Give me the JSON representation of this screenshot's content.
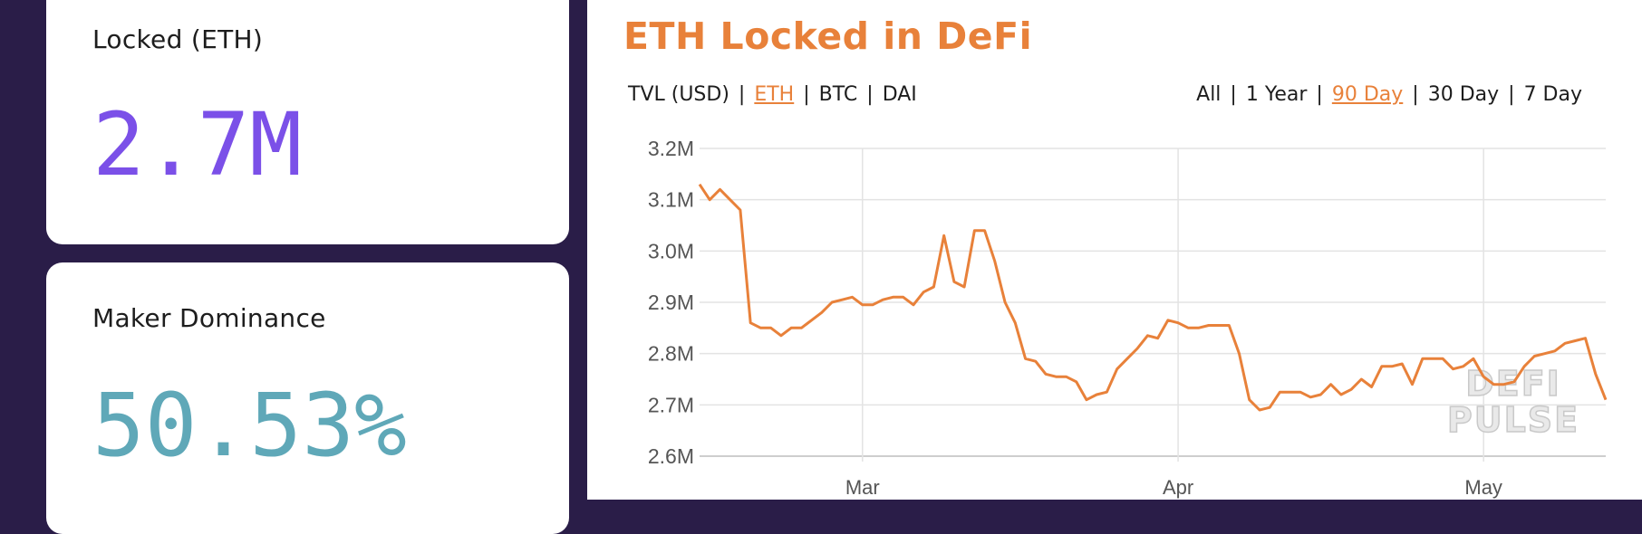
{
  "stats": {
    "locked": {
      "label": "Locked (ETH)",
      "value": "2.7M",
      "color": "#7b50e8"
    },
    "dominance": {
      "label": "Maker Dominance",
      "value": "50.53%",
      "color": "#5fa8b8"
    }
  },
  "colors": {
    "background": "#2a1d48",
    "accent": "#e8813a",
    "panel": "#ffffff"
  },
  "chart": {
    "title": "ETH Locked in DeFi",
    "metric_options": [
      {
        "label": "TVL (USD)",
        "active": false
      },
      {
        "label": "ETH",
        "active": true
      },
      {
        "label": "BTC",
        "active": false
      },
      {
        "label": "DAI",
        "active": false
      }
    ],
    "range_options": [
      {
        "label": "All",
        "active": false
      },
      {
        "label": "1 Year",
        "active": false
      },
      {
        "label": "90 Day",
        "active": true
      },
      {
        "label": "30 Day",
        "active": false
      },
      {
        "label": "7 Day",
        "active": false
      }
    ],
    "watermark": [
      "DEFI",
      "PULSE"
    ]
  },
  "chart_data": {
    "type": "line",
    "title": "ETH Locked in DeFi",
    "xlabel": "",
    "ylabel": "",
    "y_ticks": [
      "2.6M",
      "2.7M",
      "2.8M",
      "2.9M",
      "3.0M",
      "3.1M",
      "3.2M"
    ],
    "ylim": [
      2.6,
      3.2
    ],
    "y_unit": "M ETH",
    "x_tick_labels": [
      "Mar",
      "Apr",
      "May"
    ],
    "x_domain": [
      "2020-02-14",
      "2020-05-13"
    ],
    "x_ticks": [
      "2020-03-01",
      "2020-04-01",
      "2020-05-01"
    ],
    "grid": true,
    "legend": "none",
    "series": [
      {
        "color": "#e8813a",
        "points": [
          [
            "2020-02-14",
            3.13
          ],
          [
            "2020-02-15",
            3.1
          ],
          [
            "2020-02-16",
            3.12
          ],
          [
            "2020-02-17",
            3.1
          ],
          [
            "2020-02-18",
            3.08
          ],
          [
            "2020-02-19",
            2.86
          ],
          [
            "2020-02-20",
            2.85
          ],
          [
            "2020-02-21",
            2.85
          ],
          [
            "2020-02-22",
            2.835
          ],
          [
            "2020-02-23",
            2.85
          ],
          [
            "2020-02-24",
            2.85
          ],
          [
            "2020-02-25",
            2.865
          ],
          [
            "2020-02-26",
            2.88
          ],
          [
            "2020-02-27",
            2.9
          ],
          [
            "2020-02-28",
            2.905
          ],
          [
            "2020-02-29",
            2.91
          ],
          [
            "2020-03-01",
            2.895
          ],
          [
            "2020-03-02",
            2.895
          ],
          [
            "2020-03-03",
            2.905
          ],
          [
            "2020-03-04",
            2.91
          ],
          [
            "2020-03-05",
            2.91
          ],
          [
            "2020-03-06",
            2.895
          ],
          [
            "2020-03-07",
            2.92
          ],
          [
            "2020-03-08",
            2.93
          ],
          [
            "2020-03-09",
            3.03
          ],
          [
            "2020-03-10",
            2.94
          ],
          [
            "2020-03-11",
            2.93
          ],
          [
            "2020-03-12",
            3.04
          ],
          [
            "2020-03-13",
            3.04
          ],
          [
            "2020-03-14",
            2.98
          ],
          [
            "2020-03-15",
            2.9
          ],
          [
            "2020-03-16",
            2.86
          ],
          [
            "2020-03-17",
            2.79
          ],
          [
            "2020-03-18",
            2.785
          ],
          [
            "2020-03-19",
            2.76
          ],
          [
            "2020-03-20",
            2.755
          ],
          [
            "2020-03-21",
            2.755
          ],
          [
            "2020-03-22",
            2.745
          ],
          [
            "2020-03-23",
            2.71
          ],
          [
            "2020-03-24",
            2.72
          ],
          [
            "2020-03-25",
            2.725
          ],
          [
            "2020-03-26",
            2.77
          ],
          [
            "2020-03-27",
            2.79
          ],
          [
            "2020-03-28",
            2.81
          ],
          [
            "2020-03-29",
            2.835
          ],
          [
            "2020-03-30",
            2.83
          ],
          [
            "2020-03-31",
            2.865
          ],
          [
            "2020-04-01",
            2.86
          ],
          [
            "2020-04-02",
            2.85
          ],
          [
            "2020-04-03",
            2.85
          ],
          [
            "2020-04-04",
            2.855
          ],
          [
            "2020-04-05",
            2.855
          ],
          [
            "2020-04-06",
            2.855
          ],
          [
            "2020-04-07",
            2.8
          ],
          [
            "2020-04-08",
            2.71
          ],
          [
            "2020-04-09",
            2.69
          ],
          [
            "2020-04-10",
            2.695
          ],
          [
            "2020-04-11",
            2.725
          ],
          [
            "2020-04-12",
            2.725
          ],
          [
            "2020-04-13",
            2.725
          ],
          [
            "2020-04-14",
            2.715
          ],
          [
            "2020-04-15",
            2.72
          ],
          [
            "2020-04-16",
            2.74
          ],
          [
            "2020-04-17",
            2.72
          ],
          [
            "2020-04-18",
            2.73
          ],
          [
            "2020-04-19",
            2.75
          ],
          [
            "2020-04-20",
            2.735
          ],
          [
            "2020-04-21",
            2.775
          ],
          [
            "2020-04-22",
            2.775
          ],
          [
            "2020-04-23",
            2.78
          ],
          [
            "2020-04-24",
            2.74
          ],
          [
            "2020-04-25",
            2.79
          ],
          [
            "2020-04-26",
            2.79
          ],
          [
            "2020-04-27",
            2.79
          ],
          [
            "2020-04-28",
            2.77
          ],
          [
            "2020-04-29",
            2.775
          ],
          [
            "2020-04-30",
            2.79
          ],
          [
            "2020-05-01",
            2.755
          ],
          [
            "2020-05-02",
            2.74
          ],
          [
            "2020-05-03",
            2.74
          ],
          [
            "2020-05-04",
            2.745
          ],
          [
            "2020-05-05",
            2.775
          ],
          [
            "2020-05-06",
            2.795
          ],
          [
            "2020-05-07",
            2.8
          ],
          [
            "2020-05-08",
            2.805
          ],
          [
            "2020-05-09",
            2.82
          ],
          [
            "2020-05-10",
            2.825
          ],
          [
            "2020-05-11",
            2.83
          ],
          [
            "2020-05-12",
            2.76
          ],
          [
            "2020-05-13",
            2.71
          ]
        ]
      }
    ]
  }
}
